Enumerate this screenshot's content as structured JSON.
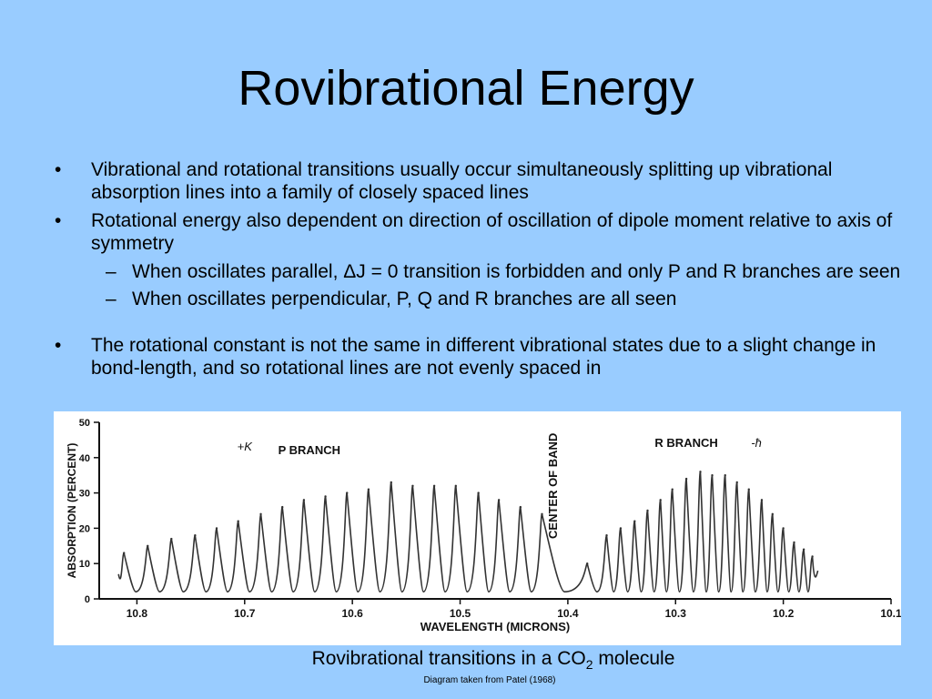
{
  "slide": {
    "title": "Rovibrational Energy",
    "bullets": [
      "Vibrational and rotational transitions usually occur simultaneously splitting up vibrational absorption lines into a family of closely spaced lines",
      "Rotational energy also dependent on direction of oscillation of dipole moment relative to axis of symmetry",
      "When oscillates parallel, ΔJ = 0 transition is forbidden and only P and R branches are seen",
      "When oscillates perpendicular, P, Q and R branches are all seen",
      "The rotational constant is not the same in different vibrational states due to a slight change in bond-length, and so rotational lines are not evenly spaced in"
    ],
    "caption_prefix": "Rovibrational transitions in a CO",
    "caption_subscript": "2",
    "caption_suffix": " molecule",
    "credit": "Diagram taken from Patel (1968)"
  },
  "colors": {
    "background": "#99ccff",
    "figure_background": "#ffffff",
    "trace": "#333333"
  },
  "chart_data": {
    "type": "line",
    "title": "",
    "xlabel": "WAVELENGTH (MICRONS)",
    "ylabel": "ABSORPTION (PERCENT)",
    "xlim": [
      10.835,
      10.1
    ],
    "ylim": [
      0,
      50
    ],
    "x_ticks": [
      10.8,
      10.7,
      10.6,
      10.5,
      10.4,
      10.3,
      10.2,
      10.1
    ],
    "x_tick_labels": [
      "10.8",
      "10.7",
      "10.6",
      "10.5",
      "10.4",
      "10.3",
      "10.2",
      "10.1"
    ],
    "y_ticks": [
      0,
      10,
      20,
      30,
      40,
      50
    ],
    "y_tick_labels": [
      "0",
      "10",
      "20",
      "30",
      "40",
      "50"
    ],
    "annotations": [
      {
        "text": "P BRANCH",
        "x": 10.64,
        "y": 41
      },
      {
        "text": "R BRANCH",
        "x": 10.29,
        "y": 43
      },
      {
        "text": "CENTER OF BAND",
        "x": 10.41,
        "y": 32,
        "rotation": -90
      },
      {
        "text": "+K",
        "x": 10.7,
        "y": 42
      },
      {
        "text": "-ħ",
        "x": 10.225,
        "y": 43
      }
    ],
    "series": [
      {
        "x": [
          10.812,
          10.79,
          10.768,
          10.746,
          10.726,
          10.706,
          10.685,
          10.665,
          10.645,
          10.625,
          10.605,
          10.585,
          10.564,
          10.544,
          10.524,
          10.504,
          10.483,
          10.464,
          10.444,
          10.424,
          10.382,
          10.364,
          10.351,
          10.338,
          10.326,
          10.314,
          10.303,
          10.29,
          10.277,
          10.266,
          10.254,
          10.243,
          10.232,
          10.22,
          10.21,
          10.2,
          10.19,
          10.181,
          10.173
        ],
        "y": [
          13,
          15,
          17,
          18,
          20,
          22,
          24,
          26,
          28,
          29,
          30,
          31,
          33,
          32,
          32,
          32,
          30,
          28,
          26,
          24,
          10,
          18,
          20,
          22,
          25,
          28,
          31,
          34,
          36,
          35,
          35,
          33,
          31,
          28,
          24,
          20,
          16,
          14,
          12
        ]
      }
    ]
  }
}
